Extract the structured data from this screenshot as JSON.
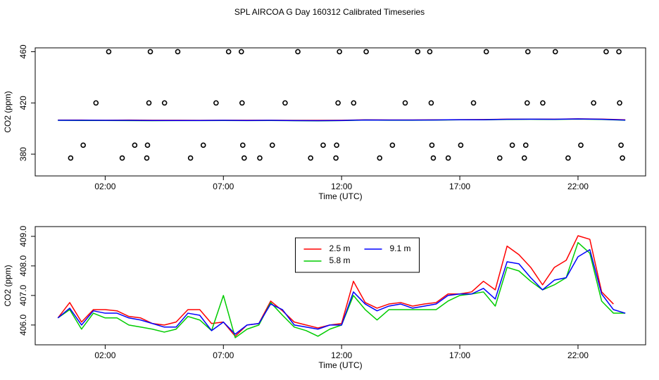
{
  "title": "SPL AIRCOA G  Day 160312  Calibrated Timeseries",
  "chart_data": [
    {
      "type": "scatter",
      "xlabel": "Time (UTC)",
      "ylabel": "CO2 (ppm)",
      "xlim": [
        -0.96,
        24.86
      ],
      "xticks": [
        {
          "value": 2,
          "label": "02:00"
        },
        {
          "value": 7,
          "label": "07:00"
        },
        {
          "value": 12,
          "label": "12:00"
        },
        {
          "value": 17,
          "label": "17:00"
        },
        {
          "value": 22,
          "label": "22:00"
        }
      ],
      "ylim": [
        363,
        463
      ],
      "yticks": [
        380,
        420,
        460
      ],
      "x": [
        0,
        1,
        2,
        3,
        4,
        5,
        6,
        7,
        8,
        9,
        10,
        11,
        12,
        13,
        14,
        15,
        16,
        17,
        18,
        19,
        20,
        21,
        22,
        23,
        24
      ],
      "series": [
        {
          "type": "line",
          "color": "#ff0000",
          "values": [
            406.6,
            406.6,
            406.5,
            406.6,
            406.5,
            406.5,
            406.4,
            406.5,
            406.5,
            406.5,
            406.4,
            406.4,
            406.5,
            406.8,
            406.7,
            406.7,
            406.8,
            406.9,
            407.0,
            407.3,
            407.4,
            407.3,
            407.6,
            407.4,
            406.8
          ]
        },
        {
          "type": "line",
          "color": "#00cc00",
          "values": [
            406.4,
            406.3,
            406.3,
            406.2,
            406.1,
            406.2,
            406.2,
            406.3,
            406.2,
            406.3,
            406.1,
            406.0,
            406.2,
            406.6,
            406.5,
            406.5,
            406.6,
            406.8,
            406.8,
            407.1,
            407.2,
            407.1,
            407.4,
            407.1,
            406.5
          ]
        },
        {
          "type": "line",
          "color": "#0000ff",
          "values": [
            406.5,
            406.5,
            406.4,
            406.4,
            406.3,
            406.3,
            406.3,
            406.4,
            406.3,
            406.4,
            406.2,
            406.1,
            406.3,
            406.7,
            406.6,
            406.6,
            406.7,
            406.9,
            406.9,
            407.2,
            407.3,
            407.2,
            407.5,
            407.2,
            406.6
          ]
        },
        {
          "color": "#000000",
          "x": [
            2.15,
            3.91,
            5.07,
            7.22,
            7.76,
            10.15,
            11.91,
            13.04,
            15.22,
            15.73,
            18.12,
            19.88,
            21.04,
            23.19,
            23.73,
            1.61,
            3.85,
            4.51,
            6.69,
            7.79,
            9.61,
            11.85,
            12.51,
            14.69,
            15.79,
            17.58,
            19.85,
            20.51,
            22.66,
            23.76,
            1.07,
            3.25,
            3.79,
            6.15,
            7.82,
            9.07,
            11.22,
            11.79,
            14.15,
            15.82,
            17.04,
            19.22,
            19.79,
            22.12,
            23.82,
            0.54,
            2.72,
            3.76,
            5.61,
            7.88,
            8.54,
            10.69,
            11.76,
            13.61,
            15.88,
            16.51,
            18.69,
            19.73,
            21.58,
            23.88
          ],
          "values": [
            460,
            460,
            460,
            460,
            460,
            460,
            460,
            460,
            460,
            460,
            460,
            460,
            460,
            460,
            460,
            420,
            420,
            420,
            420,
            420,
            420,
            420,
            420,
            420,
            420,
            420,
            420,
            420,
            420,
            420,
            387,
            387,
            387,
            387,
            387,
            387,
            387,
            387,
            387,
            387,
            387,
            387,
            387,
            387,
            387,
            377,
            377,
            377,
            377,
            377,
            377,
            377,
            377,
            377,
            377,
            377,
            377,
            377,
            377,
            377
          ]
        }
      ]
    },
    {
      "type": "line",
      "xlabel": "Time (UTC)",
      "ylabel": "CO2 (ppm)",
      "xlim": [
        -0.96,
        24.86
      ],
      "xticks": [
        {
          "value": 2,
          "label": "02:00"
        },
        {
          "value": 7,
          "label": "07:00"
        },
        {
          "value": 12,
          "label": "12:00"
        },
        {
          "value": 17,
          "label": "17:00"
        },
        {
          "value": 22,
          "label": "22:00"
        }
      ],
      "ylim": [
        405.33,
        409.33
      ],
      "yticks": [
        {
          "value": 406,
          "label": "406.0"
        },
        {
          "value": 407,
          "label": "407.0"
        },
        {
          "value": 408,
          "label": "408.0"
        },
        {
          "value": 409,
          "label": "409.0"
        }
      ],
      "legend": "top",
      "x": [
        0,
        0.5,
        1,
        1.5,
        2,
        2.5,
        3,
        3.5,
        4,
        4.5,
        5,
        5.5,
        6,
        6.5,
        7,
        7.5,
        8,
        8.5,
        9,
        9.5,
        10,
        10.5,
        11,
        11.5,
        12,
        12.5,
        13,
        13.5,
        14,
        14.5,
        15,
        15.5,
        16,
        16.5,
        17,
        17.5,
        18,
        18.5,
        19,
        19.5,
        20,
        20.5,
        21,
        21.5,
        22,
        22.5,
        23,
        23.5,
        24
      ],
      "series": [
        {
          "name": "2.5 m",
          "color": "#ff0000",
          "values": [
            406.24,
            406.76,
            406.1,
            406.52,
            406.52,
            406.48,
            406.29,
            406.24,
            406.05,
            406.0,
            406.1,
            406.52,
            406.52,
            406.05,
            406.1,
            405.62,
            406.0,
            406.05,
            406.81,
            406.48,
            406.1,
            406.0,
            405.9,
            406.0,
            406.05,
            407.48,
            406.76,
            406.57,
            406.71,
            406.76,
            406.64,
            406.71,
            406.76,
            407.05,
            407.05,
            407.12,
            407.48,
            407.19,
            408.67,
            408.38,
            407.95,
            407.36,
            407.95,
            408.19,
            409.02,
            408.9,
            407.12,
            406.71,
            null
          ]
        },
        {
          "name": "5.8 m",
          "color": "#00cc00",
          "values": [
            406.24,
            406.52,
            405.86,
            406.4,
            406.24,
            406.24,
            406.0,
            405.93,
            405.86,
            405.76,
            405.86,
            406.29,
            406.17,
            405.81,
            407.0,
            405.57,
            405.86,
            406.0,
            406.76,
            406.33,
            405.93,
            405.81,
            405.62,
            405.86,
            406.0,
            407.0,
            406.52,
            406.17,
            406.52,
            406.52,
            406.52,
            406.52,
            406.52,
            406.81,
            407.0,
            407.05,
            407.12,
            406.64,
            407.95,
            407.83,
            407.48,
            407.19,
            407.36,
            407.6,
            408.79,
            408.43,
            406.81,
            406.4,
            406.4
          ]
        },
        {
          "name": "9.1 m",
          "color": "#0000ff",
          "values": [
            406.24,
            406.57,
            406.0,
            406.48,
            406.4,
            406.4,
            406.24,
            406.17,
            406.05,
            405.93,
            405.93,
            406.4,
            406.33,
            405.81,
            406.1,
            405.69,
            406.0,
            406.05,
            406.71,
            406.52,
            406.0,
            405.93,
            405.86,
            406.0,
            406.0,
            407.12,
            406.71,
            406.48,
            406.64,
            406.71,
            406.57,
            406.64,
            406.71,
            407.0,
            407.05,
            407.05,
            407.24,
            406.88,
            408.14,
            408.07,
            407.6,
            407.19,
            407.52,
            407.6,
            408.31,
            408.55,
            407.05,
            406.52,
            406.4
          ]
        }
      ]
    }
  ]
}
